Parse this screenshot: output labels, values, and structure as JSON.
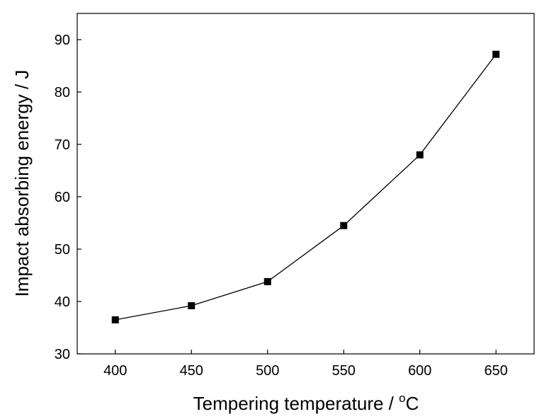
{
  "chart_data": {
    "type": "line",
    "title": "",
    "xlabel": "Tempering temperature / ",
    "xlabel_unit_sup": "o",
    "xlabel_unit": "C",
    "ylabel": "Impact absorbing energy / J",
    "xlim": [
      375,
      675
    ],
    "ylim": [
      30,
      95
    ],
    "xticks": [
      400,
      450,
      500,
      550,
      600,
      650
    ],
    "yticks": [
      30,
      40,
      50,
      60,
      70,
      80,
      90
    ],
    "grid": false,
    "legend": "none",
    "series": [
      {
        "marker": "square",
        "color": "#000000",
        "x": [
          400,
          450,
          500,
          550,
          600,
          650
        ],
        "y": [
          36.5,
          39.2,
          43.8,
          54.5,
          68.0,
          87.2
        ]
      }
    ]
  }
}
